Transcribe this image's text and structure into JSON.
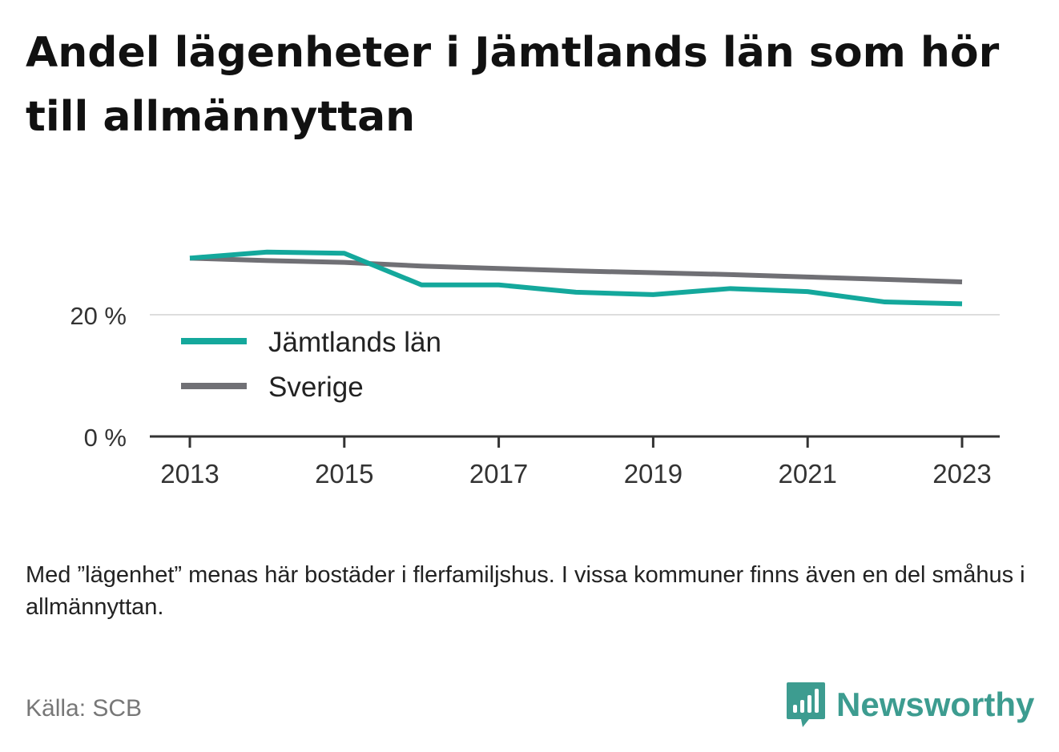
{
  "title": "Andel lägenheter i Jämtlands län som hör till allmännyttan",
  "note": "Med ”lägenhet” menas här bostäder i flerfamiljshus. I vissa kommuner finns även en del småhus i allmännyttan.",
  "source": "Källa: SCB",
  "brand": {
    "name": "Newsworthy",
    "icon": "newsworthy-chart-bubble-icon",
    "color": "#3d9c90"
  },
  "chart_data": {
    "type": "line",
    "x": [
      2013,
      2014,
      2015,
      2016,
      2017,
      2018,
      2019,
      2020,
      2021,
      2022,
      2023
    ],
    "xticks": [
      "2013",
      "2015",
      "2017",
      "2019",
      "2021",
      "2023"
    ],
    "yticks": [
      "0 %",
      "20 %"
    ],
    "ylim": [
      0,
      30
    ],
    "grid": true,
    "legend_position": "bottom-left",
    "series": [
      {
        "name": "Jämtlands län",
        "color": "#14a89c",
        "values": [
          29.3,
          30.3,
          30.1,
          24.9,
          24.9,
          23.7,
          23.3,
          24.3,
          23.8,
          22.1,
          21.8
        ]
      },
      {
        "name": "Sverige",
        "color": "#707075",
        "values": [
          29.3,
          28.9,
          28.6,
          28.0,
          27.6,
          27.2,
          26.9,
          26.6,
          26.2,
          25.8,
          25.4
        ]
      }
    ]
  }
}
